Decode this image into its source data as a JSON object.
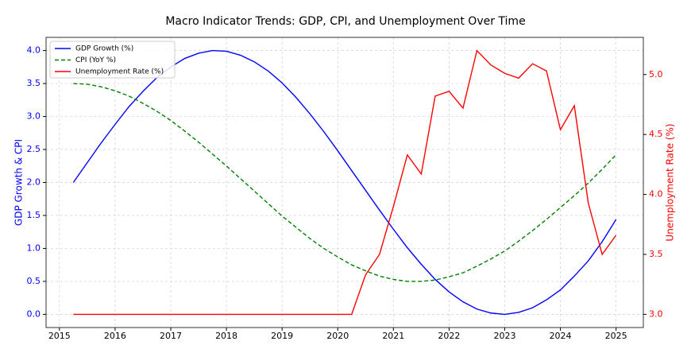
{
  "chart_data": {
    "type": "line",
    "title": "Macro Indicator Trends: GDP, CPI, and Unemployment Over Time",
    "ylabel": "GDP Growth & CPI",
    "y2label": "Unemployment Rate (%)",
    "y_color": "#0000ff",
    "y2_color": "#ff0000",
    "x": [
      2015.25,
      2015.5,
      2015.75,
      2016,
      2016.25,
      2016.5,
      2016.75,
      2017,
      2017.25,
      2017.5,
      2017.75,
      2018,
      2018.25,
      2018.5,
      2018.75,
      2019,
      2019.25,
      2019.5,
      2019.75,
      2020,
      2020.25,
      2020.5,
      2020.75,
      2021,
      2021.25,
      2021.5,
      2021.75,
      2022,
      2022.25,
      2022.5,
      2022.75,
      2023,
      2023.25,
      2023.5,
      2023.75,
      2024,
      2024.25,
      2024.5,
      2024.75,
      2025
    ],
    "series": [
      {
        "name": "GDP Growth (%)",
        "color": "#0000ff",
        "style": "solid",
        "values": [
          2.0,
          2.3,
          2.6,
          2.88,
          3.15,
          3.38,
          3.59,
          3.75,
          3.88,
          3.96,
          4.0,
          3.99,
          3.93,
          3.83,
          3.69,
          3.51,
          3.29,
          3.04,
          2.77,
          2.48,
          2.18,
          1.88,
          1.58,
          1.29,
          1.01,
          0.76,
          0.53,
          0.34,
          0.19,
          0.08,
          0.02,
          0.0,
          0.03,
          0.1,
          0.22,
          0.37,
          0.58,
          0.81,
          1.1,
          1.44
        ]
      },
      {
        "name": "CPI (YoY %)",
        "color": "#008000",
        "style": "dashed",
        "values": [
          3.5,
          3.49,
          3.45,
          3.39,
          3.31,
          3.2,
          3.08,
          2.94,
          2.78,
          2.61,
          2.43,
          2.25,
          2.06,
          1.87,
          1.68,
          1.49,
          1.32,
          1.15,
          1.0,
          0.87,
          0.75,
          0.66,
          0.58,
          0.53,
          0.5,
          0.5,
          0.52,
          0.57,
          0.63,
          0.73,
          0.84,
          0.96,
          1.11,
          1.27,
          1.44,
          1.62,
          1.8,
          1.99,
          2.2,
          2.42
        ]
      },
      {
        "name": "Unemployment Rate (%)",
        "color": "#ff0000",
        "style": "solid",
        "axis": "y2",
        "values": [
          3.0,
          3.0,
          3.0,
          3.0,
          3.0,
          3.0,
          3.0,
          3.0,
          3.0,
          3.0,
          3.0,
          3.0,
          3.0,
          3.0,
          3.0,
          3.0,
          3.0,
          3.0,
          3.0,
          3.0,
          3.0,
          3.33,
          3.5,
          3.9,
          4.33,
          4.17,
          4.82,
          4.86,
          4.72,
          5.2,
          5.08,
          5.01,
          4.97,
          5.09,
          5.03,
          4.54,
          4.74,
          3.93,
          3.5,
          3.66
        ]
      }
    ],
    "xlim": [
      2014.76,
      2025.49
    ],
    "xticks": [
      2015,
      2016,
      2017,
      2018,
      2019,
      2020,
      2021,
      2022,
      2023,
      2024,
      2025
    ],
    "ylim": [
      -0.2,
      4.2
    ],
    "yticks": [
      {
        "value": 0,
        "label": "0.0"
      },
      {
        "value": 0.5,
        "label": "0.5"
      },
      {
        "value": 1,
        "label": "1.0"
      },
      {
        "value": 1.5,
        "label": "1.5"
      },
      {
        "value": 2,
        "label": "2.0"
      },
      {
        "value": 2.5,
        "label": "2.5"
      },
      {
        "value": 3,
        "label": "3.0"
      },
      {
        "value": 3.5,
        "label": "3.5"
      },
      {
        "value": 4,
        "label": "4.0"
      }
    ],
    "y2lim": [
      2.89,
      5.31
    ],
    "y2ticks": [
      {
        "value": 3,
        "label": "3.0"
      },
      {
        "value": 3.5,
        "label": "3.5"
      },
      {
        "value": 4,
        "label": "4.0"
      },
      {
        "value": 4.5,
        "label": "4.5"
      },
      {
        "value": 5,
        "label": "5.0"
      }
    ],
    "grid": true,
    "legend": "upper-left"
  }
}
